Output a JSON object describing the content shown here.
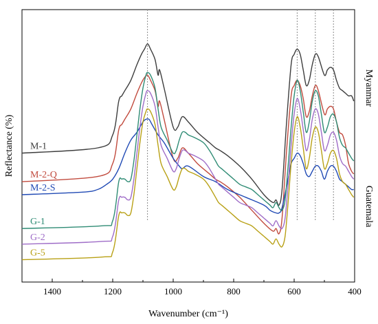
{
  "chart_data": {
    "type": "line",
    "title": "",
    "xlabel": "Wavenumber (cm⁻¹)",
    "ylabel": "Reflectance (%)",
    "xlim": [
      1500,
      400
    ],
    "x_reversed": true,
    "x_ticks": [
      1400,
      1200,
      1000,
      800,
      600,
      400
    ],
    "y_ticks": [],
    "grid": false,
    "legend": "inline labels",
    "reference_lines": [
      1085,
      590,
      530,
      470
    ],
    "groups": [
      {
        "label": "Myanmar",
        "series": [
          "M-1",
          "M-2-Q",
          "M-2-S"
        ]
      },
      {
        "label": "Guatemala",
        "series": [
          "G-1",
          "G-2",
          "G-5"
        ]
      }
    ],
    "series": [
      {
        "name": "M-1",
        "color": "#3d3d3d",
        "x": [
          1500,
          1250,
          1200,
          1180,
          1170,
          1160,
          1140,
          1120,
          1105,
          1095,
          1085,
          1075,
          1060,
          1050,
          1045,
          1030,
          1000,
          985,
          970,
          950,
          920,
          880,
          860,
          845,
          820,
          780,
          740,
          700,
          670,
          660,
          650,
          640,
          625,
          610,
          600,
          590,
          580,
          570,
          560,
          550,
          540,
          530,
          520,
          500,
          490,
          480,
          470,
          460,
          450,
          440,
          430,
          420,
          410,
          403
        ],
        "y": [
          48,
          50,
          55,
          68,
          70,
          72,
          76,
          82,
          86,
          88,
          90,
          88,
          84,
          78,
          80,
          73,
          58,
          58,
          62,
          60,
          56,
          52,
          50,
          49,
          47,
          43,
          38,
          32,
          29,
          30,
          28,
          34,
          60,
          82,
          86,
          88,
          86,
          80,
          74,
          76,
          82,
          86,
          85,
          78,
          80,
          81,
          80,
          76,
          73,
          72,
          71,
          70,
          70,
          68
        ]
      },
      {
        "name": "M-2-Q",
        "color": "#c14a3d",
        "x": [
          1500,
          1250,
          1200,
          1180,
          1170,
          1160,
          1140,
          1120,
          1105,
          1095,
          1085,
          1075,
          1060,
          1050,
          1045,
          1030,
          1000,
          985,
          970,
          950,
          920,
          880,
          860,
          845,
          820,
          780,
          740,
          700,
          670,
          660,
          650,
          640,
          625,
          610,
          600,
          590,
          580,
          570,
          560,
          550,
          540,
          530,
          520,
          500,
          490,
          480,
          470,
          460,
          450,
          440,
          430,
          420,
          410,
          403
        ],
        "y": [
          37,
          39,
          44,
          57,
          59,
          61,
          65,
          71,
          75,
          77,
          78,
          76,
          72,
          66,
          68,
          61,
          46,
          46,
          50,
          48,
          44,
          40,
          38,
          37,
          35,
          31,
          26,
          21,
          18,
          19,
          17,
          23,
          49,
          70,
          74,
          76,
          74,
          69,
          62,
          64,
          70,
          74,
          72,
          63,
          65,
          66,
          65,
          60,
          56,
          55,
          51,
          44,
          41,
          40
        ]
      },
      {
        "name": "M-2-S",
        "color": "#1f49b4",
        "x": [
          1500,
          1300,
          1250,
          1220,
          1200,
          1180,
          1160,
          1140,
          1120,
          1100,
          1090,
          1080,
          1070,
          1050,
          1030,
          1000,
          980,
          970,
          950,
          900,
          860,
          820,
          760,
          700,
          680,
          660,
          650,
          640,
          620,
          610,
          600,
          590,
          580,
          570,
          560,
          550,
          540,
          530,
          520,
          510,
          500,
          490,
          480,
          470,
          460,
          450,
          440,
          430,
          420,
          410,
          403
        ],
        "y": [
          32,
          33,
          34,
          36,
          38,
          42,
          48,
          53,
          56,
          60,
          61,
          61,
          59,
          55,
          52,
          46,
          43,
          42,
          43,
          39,
          37,
          34,
          31,
          28,
          26,
          25,
          25,
          27,
          38,
          44,
          46,
          48,
          47,
          44,
          40,
          39,
          41,
          43,
          43,
          41,
          38,
          41,
          43,
          43,
          41,
          38,
          37,
          36,
          35,
          34,
          34
        ]
      },
      {
        "name": "G-1",
        "color": "#2e8b74",
        "x": [
          1500,
          1240,
          1200,
          1180,
          1170,
          1160,
          1150,
          1140,
          1130,
          1120,
          1110,
          1100,
          1090,
          1085,
          1075,
          1060,
          1050,
          1040,
          1020,
          1000,
          990,
          980,
          970,
          960,
          950,
          930,
          900,
          880,
          860,
          850,
          840,
          820,
          800,
          780,
          760,
          740,
          720,
          700,
          680,
          670,
          660,
          650,
          640,
          630,
          620,
          610,
          600,
          590,
          580,
          570,
          560,
          550,
          540,
          530,
          520,
          510,
          500,
          490,
          480,
          470,
          460,
          450,
          440,
          430,
          420,
          410,
          403
        ],
        "y": [
          19,
          20,
          22,
          37,
          38,
          38,
          37,
          38,
          45,
          55,
          65,
          73,
          78,
          79,
          78,
          73,
          65,
          58,
          53,
          48,
          49,
          53,
          56,
          56,
          55,
          54,
          52,
          49,
          45,
          43,
          42,
          40,
          38,
          36,
          35,
          34,
          32,
          30,
          28,
          27,
          29,
          27,
          26,
          30,
          43,
          58,
          70,
          76,
          72,
          64,
          56,
          60,
          68,
          72,
          70,
          63,
          56,
          58,
          62,
          63,
          60,
          54,
          51,
          50,
          48,
          46,
          45
        ]
      },
      {
        "name": "G-2",
        "color": "#9e6cc7",
        "x": [
          1500,
          1240,
          1200,
          1180,
          1170,
          1160,
          1150,
          1140,
          1130,
          1120,
          1110,
          1100,
          1090,
          1085,
          1075,
          1060,
          1050,
          1040,
          1020,
          1000,
          990,
          980,
          970,
          960,
          950,
          930,
          900,
          880,
          860,
          850,
          840,
          820,
          800,
          780,
          760,
          740,
          720,
          700,
          680,
          670,
          660,
          650,
          640,
          630,
          620,
          610,
          600,
          590,
          580,
          570,
          560,
          550,
          540,
          530,
          520,
          510,
          500,
          490,
          480,
          470,
          460,
          450,
          440,
          430,
          420,
          410,
          403
        ],
        "y": [
          13,
          14,
          16,
          30,
          31,
          31,
          30,
          31,
          38,
          48,
          58,
          66,
          71,
          72,
          71,
          66,
          58,
          51,
          46,
          41,
          42,
          46,
          49,
          49,
          48,
          47,
          45,
          42,
          38,
          36,
          35,
          33,
          31,
          29,
          28,
          27,
          25,
          23,
          21,
          20,
          22,
          20,
          19,
          23,
          36,
          51,
          63,
          69,
          65,
          57,
          49,
          53,
          61,
          65,
          63,
          56,
          49,
          51,
          55,
          56,
          53,
          47,
          44,
          43,
          41,
          39,
          38
        ]
      },
      {
        "name": "G-5",
        "color": "#b8a014",
        "x": [
          1500,
          1240,
          1200,
          1180,
          1170,
          1160,
          1150,
          1140,
          1130,
          1120,
          1110,
          1100,
          1090,
          1085,
          1075,
          1060,
          1050,
          1040,
          1020,
          1000,
          990,
          980,
          970,
          960,
          950,
          930,
          900,
          880,
          860,
          850,
          840,
          820,
          800,
          780,
          760,
          740,
          720,
          700,
          680,
          670,
          660,
          650,
          640,
          630,
          620,
          610,
          600,
          590,
          580,
          570,
          560,
          550,
          540,
          530,
          520,
          510,
          500,
          490,
          480,
          470,
          460,
          450,
          440,
          430,
          420,
          410,
          403
        ],
        "y": [
          7,
          8,
          10,
          24,
          25,
          25,
          24,
          25,
          32,
          42,
          52,
          60,
          64,
          65,
          64,
          59,
          51,
          44,
          39,
          34,
          35,
          39,
          42,
          42,
          41,
          40,
          38,
          35,
          31,
          29,
          28,
          26,
          24,
          22,
          21,
          20,
          18,
          16,
          14,
          13,
          15,
          13,
          12,
          16,
          29,
          44,
          56,
          62,
          58,
          50,
          42,
          46,
          54,
          58,
          56,
          49,
          42,
          44,
          48,
          49,
          46,
          40,
          37,
          36,
          34,
          32,
          31
        ]
      }
    ]
  }
}
